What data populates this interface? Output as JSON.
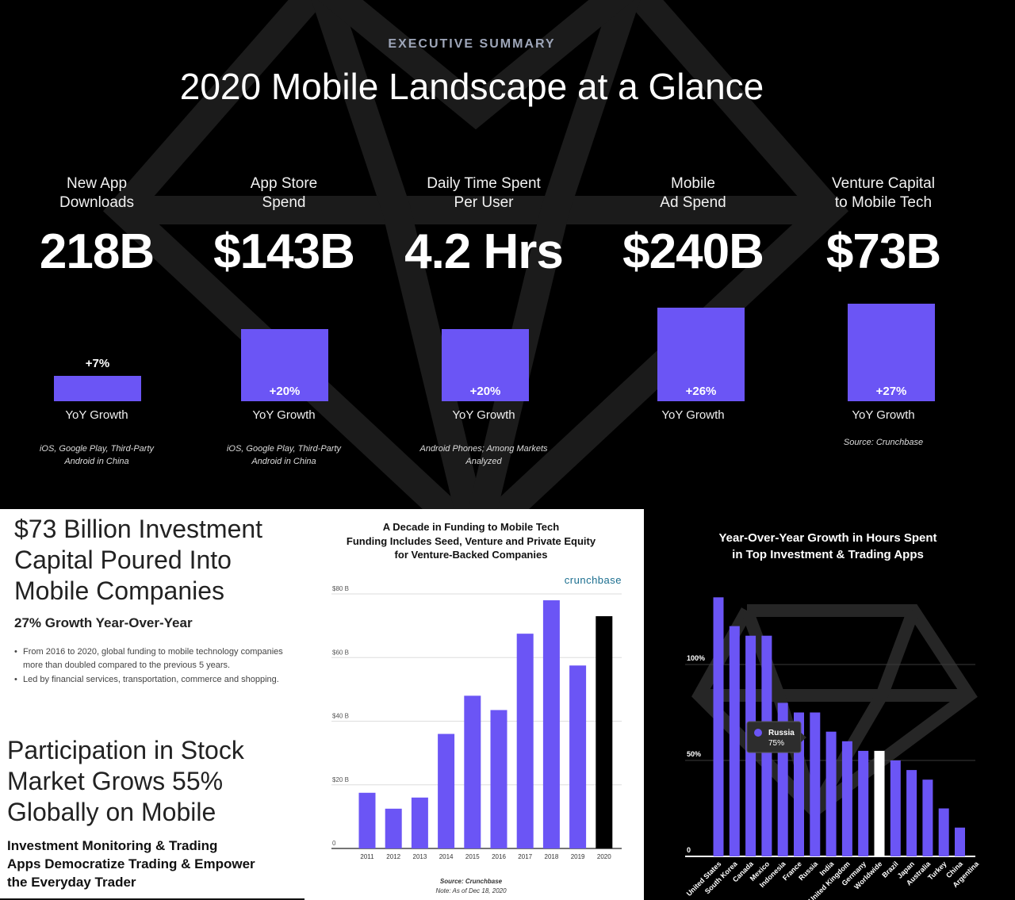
{
  "header": {
    "kicker": "EXECUTIVE SUMMARY",
    "title": "2020 Mobile Landscape at a Glance"
  },
  "kpis": [
    {
      "label": "New App\nDownloads",
      "value": "218B",
      "growth": "+7%",
      "growth_pct": 7,
      "yoy_label": "YoY Growth",
      "note": "iOS, Google Play, Third-Party\nAndroid in China"
    },
    {
      "label": "App Store\nSpend",
      "value": "$143B",
      "growth": "+20%",
      "growth_pct": 20,
      "yoy_label": "YoY Growth",
      "note": "iOS, Google Play, Third-Party\nAndroid in China"
    },
    {
      "label": "Daily Time Spent\nPer User",
      "value": "4.2 Hrs",
      "growth": "+20%",
      "growth_pct": 20,
      "yoy_label": "YoY Growth",
      "note": "Android Phones; Among Markets\nAnalyzed"
    },
    {
      "label": "Mobile\nAd Spend",
      "value": "$240B",
      "growth": "+26%",
      "growth_pct": 26,
      "yoy_label": "YoY Growth",
      "note": ""
    },
    {
      "label": "Venture Capital\nto Mobile Tech",
      "value": "$73B",
      "growth": "+27%",
      "growth_pct": 27,
      "yoy_label": "YoY Growth",
      "note": "Source: Crunchbase"
    }
  ],
  "accent_color": "#6b55f5",
  "investment_panel": {
    "headline": "$73 Billion Investment\nCapital Poured Into\nMobile Companies",
    "subhead": "27% Growth Year-Over-Year",
    "bullets": [
      "From 2016 to 2020, global funding to mobile technology companies more than doubled compared to the previous 5 years.",
      "Led by financial services, transportation, commerce and shopping."
    ],
    "headline2": "Participation in Stock\nMarket Grows 55%\nGlobally on Mobile",
    "subhead2": "Investment Monitoring & Trading\nApps Democratize Trading & Empower\nthe Everyday Trader"
  },
  "chart_data": [
    {
      "type": "bar",
      "title": "A Decade in Funding to Mobile Tech",
      "subtitle": "Funding Includes Seed, Venture and Private Equity\nfor Venture-Backed Companies",
      "brand": "crunchbase",
      "categories": [
        "2011",
        "2012",
        "2013",
        "2014",
        "2015",
        "2016",
        "2017",
        "2018",
        "2019",
        "2020"
      ],
      "values": [
        17.5,
        12.5,
        16,
        36,
        48,
        43.5,
        67.5,
        78,
        57.5,
        73
      ],
      "highlight_index": 9,
      "highlight_color": "#000000",
      "bar_color": "#6b55f5",
      "ylim": [
        0,
        80
      ],
      "yticks": [
        "0",
        "$20 B",
        "$40 B",
        "$60 B",
        "$80 B"
      ],
      "ytick_values": [
        0,
        20,
        40,
        60,
        80
      ],
      "grid": true,
      "source": "Source: Crunchbase",
      "note": "Note: As of Dec 18, 2020"
    },
    {
      "type": "bar",
      "title": "Year-Over-Year Growth in Hours Spent\nin Top Investment & Trading Apps",
      "categories": [
        "United States",
        "South Korea",
        "Canada",
        "Mexico",
        "Indonesia",
        "France",
        "Russia",
        "India",
        "United Kingdom",
        "Germany",
        "Worldwide",
        "Brazil",
        "Japan",
        "Australia",
        "Turkey",
        "China",
        "Argentina"
      ],
      "values": [
        135,
        120,
        115,
        115,
        80,
        75,
        75,
        65,
        60,
        55,
        55,
        50,
        45,
        40,
        25,
        15,
        0
      ],
      "highlight_index": 10,
      "highlight_color": "#ffffff",
      "bar_color": "#6b55f5",
      "ylim": [
        0,
        140
      ],
      "yticks": [
        "0",
        "50%",
        "100%"
      ],
      "ytick_values": [
        0,
        50,
        100
      ],
      "grid": true,
      "tooltip": {
        "label": "Russia",
        "value": "75%"
      }
    }
  ]
}
